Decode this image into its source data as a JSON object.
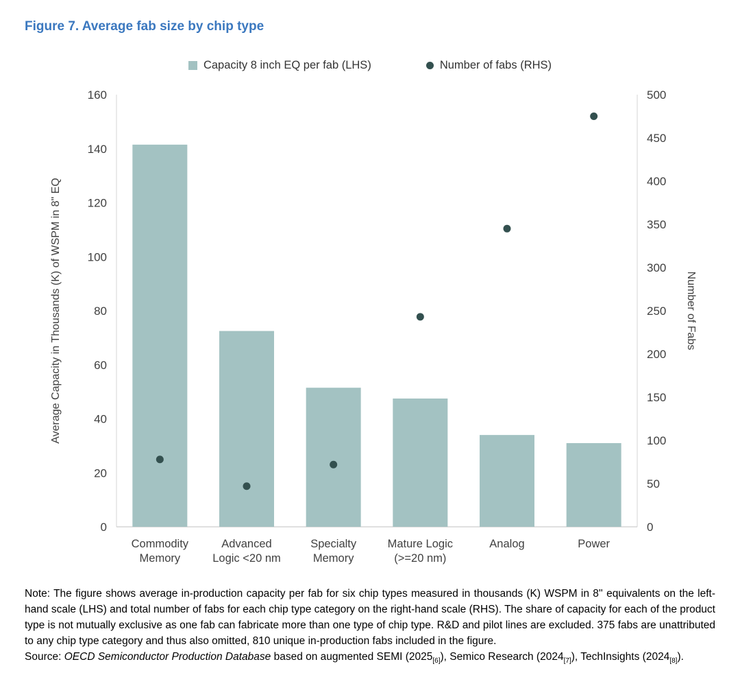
{
  "figure": {
    "title": "Figure 7. Average fab size by chip type"
  },
  "colors": {
    "title_blue": "#3b78bf",
    "bar": "#a3c2c2",
    "dot": "#33504f",
    "axis_text": "#404040",
    "axis_line": "#d6d6d6",
    "baseline": "#bfbfbf"
  },
  "chart_data": {
    "type": "bar",
    "overlay": "scatter",
    "title": "Figure 7. Average fab size by chip type",
    "legend_position": "top",
    "gridlines": false,
    "categories": [
      "Commodity\nMemory",
      "Advanced\nLogic <20 nm",
      "Specialty\nMemory",
      "Mature Logic\n(>=20 nm)",
      "Analog",
      "Power"
    ],
    "series": [
      {
        "name": "Capacity 8 inch EQ per fab (LHS)",
        "type": "bar",
        "axis": "left",
        "values": [
          141.5,
          72.5,
          51.5,
          47.5,
          34,
          31
        ]
      },
      {
        "name": "Number of fabs (RHS)",
        "type": "scatter",
        "axis": "right",
        "values": [
          78,
          47,
          72,
          243,
          345,
          475
        ]
      }
    ],
    "left_axis": {
      "label": "Average Capacity in Thousands (K) of WSPM in 8\" EQ",
      "min": 0,
      "max": 160,
      "step": 20
    },
    "right_axis": {
      "label": "Number of Fabs",
      "min": 0,
      "max": 500,
      "step": 50
    }
  },
  "note": "Note: The figure shows average in-production capacity per fab for six chip types measured in thousands (K) WSPM in 8'' equivalents on the left-hand scale (LHS) and total number of fabs for each chip type category on the right-hand scale (RHS). The share of capacity for each of the product type is not mutually exclusive as one fab can fabricate more than one type of chip type. R&D and pilot lines are excluded. 375 fabs are unattributed to any chip type category and thus also omitted, 810 unique in-production fabs included in the figure.",
  "source": {
    "prefix": "Source: ",
    "database": "OECD Semiconductor Production Database",
    "t1": " based on augmented SEMI (2025",
    "sub1": "[6]",
    "t2": "), Semico Research (2024",
    "sub2": "[7]",
    "t3": "), TechInsights (2024",
    "sub3": "[8]",
    "t4": ")."
  }
}
